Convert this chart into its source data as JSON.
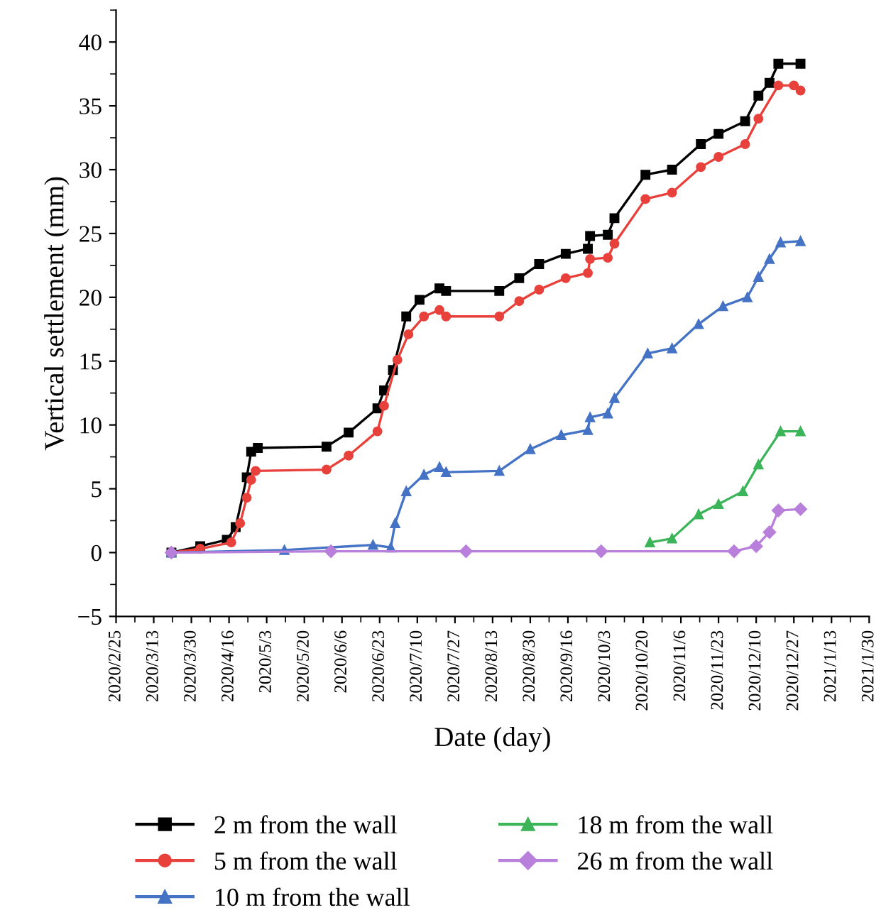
{
  "chart_data": {
    "type": "line",
    "xlabel": "Date (day)",
    "ylabel": "Vertical settlement (mm)",
    "xlim": [
      "2020-02-25",
      "2021-01-30"
    ],
    "xticks": [
      {
        "value": "2020-02-25",
        "label": "2020/2/25"
      },
      {
        "value": "2020-03-13",
        "label": "2020/3/13"
      },
      {
        "value": "2020-03-30",
        "label": "2020/3/30"
      },
      {
        "value": "2020-04-16",
        "label": "2020/4/16"
      },
      {
        "value": "2020-05-03",
        "label": "2020/5/3"
      },
      {
        "value": "2020-05-20",
        "label": "2020/5/20"
      },
      {
        "value": "2020-06-06",
        "label": "2020/6/6"
      },
      {
        "value": "2020-06-23",
        "label": "2020/6/23"
      },
      {
        "value": "2020-07-10",
        "label": "2020/7/10"
      },
      {
        "value": "2020-07-27",
        "label": "2020/7/27"
      },
      {
        "value": "2020-08-13",
        "label": "2020/8/13"
      },
      {
        "value": "2020-08-30",
        "label": "2020/8/30"
      },
      {
        "value": "2020-09-16",
        "label": "2020/9/16"
      },
      {
        "value": "2020-10-03",
        "label": "2020/10/3"
      },
      {
        "value": "2020-10-20",
        "label": "2020/10/20"
      },
      {
        "value": "2020-11-06",
        "label": "2020/11/6"
      },
      {
        "value": "2020-11-23",
        "label": "2020/11/23"
      },
      {
        "value": "2020-12-10",
        "label": "2020/12/10"
      },
      {
        "value": "2020-12-27",
        "label": "2020/12/27"
      },
      {
        "value": "2021-01-13",
        "label": "2021/1/13"
      },
      {
        "value": "2021-01-30",
        "label": "2021/1/30"
      }
    ],
    "ylim": [
      -5,
      42.5
    ],
    "yticks": [
      {
        "value": -5,
        "label": "−5"
      },
      0,
      5,
      10,
      15,
      20,
      25,
      30,
      35,
      40
    ],
    "grid": false,
    "legend": "bottom",
    "line_style": "solid",
    "series": [
      {
        "name": "2 m from the wall",
        "color": "#000000",
        "marker": "square",
        "x": [
          "2020-03-21",
          "2020-04-03",
          "2020-04-15",
          "2020-04-19",
          "2020-04-24",
          "2020-04-26",
          "2020-04-29",
          "2020-05-30",
          "2020-06-09",
          "2020-06-22",
          "2020-06-25",
          "2020-06-29",
          "2020-07-05",
          "2020-07-11",
          "2020-07-20",
          "2020-07-23",
          "2020-08-16",
          "2020-08-25",
          "2020-09-03",
          "2020-09-15",
          "2020-09-25",
          "2020-09-26",
          "2020-10-04",
          "2020-10-07",
          "2020-10-21",
          "2020-11-02",
          "2020-11-15",
          "2020-11-23",
          "2020-12-05",
          "2020-12-11",
          "2020-12-16",
          "2020-12-20",
          "2020-12-30"
        ],
        "values": [
          0,
          0.5,
          1.0,
          2.0,
          5.9,
          7.9,
          8.2,
          8.3,
          9.4,
          11.3,
          12.7,
          14.3,
          18.5,
          19.8,
          20.7,
          20.5,
          20.5,
          21.5,
          22.6,
          23.4,
          23.8,
          24.8,
          24.9,
          26.2,
          29.6,
          30.0,
          32.0,
          32.8,
          33.8,
          35.8,
          36.8,
          38.3,
          38.3
        ]
      },
      {
        "name": "5 m from the wall",
        "color": "#e8413c",
        "marker": "circle",
        "x": [
          "2020-03-21",
          "2020-04-03",
          "2020-04-17",
          "2020-04-21",
          "2020-04-24",
          "2020-04-26",
          "2020-04-28",
          "2020-05-30",
          "2020-06-09",
          "2020-06-22",
          "2020-06-25",
          "2020-07-01",
          "2020-07-06",
          "2020-07-13",
          "2020-07-20",
          "2020-07-23",
          "2020-08-16",
          "2020-08-25",
          "2020-09-03",
          "2020-09-15",
          "2020-09-25",
          "2020-09-26",
          "2020-10-04",
          "2020-10-07",
          "2020-10-21",
          "2020-11-02",
          "2020-11-15",
          "2020-11-23",
          "2020-12-05",
          "2020-12-11",
          "2020-12-20",
          "2020-12-27",
          "2020-12-30"
        ],
        "values": [
          0,
          0.3,
          0.8,
          2.3,
          4.3,
          5.7,
          6.4,
          6.5,
          7.6,
          9.5,
          11.5,
          15.1,
          17.1,
          18.5,
          19.0,
          18.5,
          18.5,
          19.7,
          20.6,
          21.5,
          21.9,
          23.0,
          23.1,
          24.2,
          27.7,
          28.2,
          30.2,
          31.0,
          32.0,
          34.0,
          36.6,
          36.6,
          36.2
        ]
      },
      {
        "name": "10 m from the wall",
        "color": "#4472c4",
        "marker": "triangle",
        "x": [
          "2020-03-21",
          "2020-05-11",
          "2020-06-20",
          "2020-06-28",
          "2020-06-30",
          "2020-07-05",
          "2020-07-13",
          "2020-07-20",
          "2020-07-23",
          "2020-08-16",
          "2020-08-30",
          "2020-09-13",
          "2020-09-25",
          "2020-09-26",
          "2020-10-04",
          "2020-10-07",
          "2020-10-22",
          "2020-11-02",
          "2020-11-14",
          "2020-11-25",
          "2020-12-06",
          "2020-12-11",
          "2020-12-16",
          "2020-12-21",
          "2020-12-30"
        ],
        "values": [
          0,
          0.2,
          0.6,
          0.4,
          2.3,
          4.8,
          6.1,
          6.7,
          6.3,
          6.4,
          8.1,
          9.2,
          9.6,
          10.6,
          10.9,
          12.1,
          15.6,
          16.0,
          17.9,
          19.3,
          20.0,
          21.6,
          23.0,
          24.3,
          24.4
        ]
      },
      {
        "name": "18 m from the wall",
        "color": "#3cb45a",
        "marker": "triangle",
        "x": [
          "2020-10-23",
          "2020-11-02",
          "2020-11-14",
          "2020-11-23",
          "2020-12-04",
          "2020-12-11",
          "2020-12-21",
          "2020-12-30"
        ],
        "values": [
          0.8,
          1.1,
          3.0,
          3.8,
          4.8,
          6.9,
          9.5,
          9.5
        ]
      },
      {
        "name": "26 m from the wall",
        "color": "#b87fdb",
        "marker": "diamond",
        "x": [
          "2020-03-21",
          "2020-06-01",
          "2020-08-01",
          "2020-10-01",
          "2020-11-30",
          "2020-12-10",
          "2020-12-16",
          "2020-12-20",
          "2020-12-30"
        ],
        "values": [
          0,
          0.1,
          0.1,
          0.1,
          0.1,
          0.5,
          1.6,
          3.3,
          3.4
        ]
      }
    ]
  }
}
